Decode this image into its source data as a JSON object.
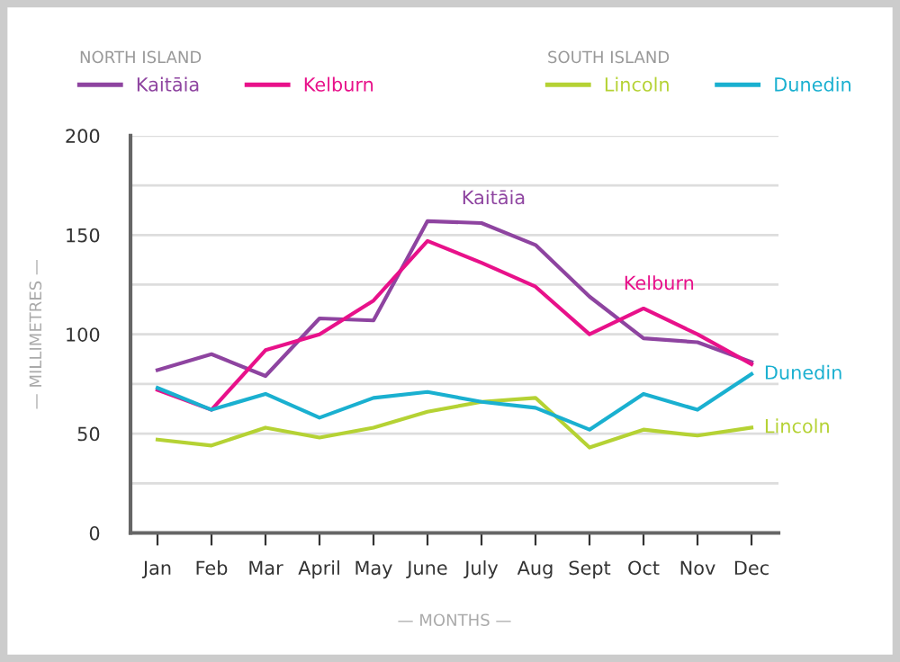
{
  "chart_data": {
    "type": "line",
    "xlabel": "— MONTHS —",
    "ylabel": "— MILLIMETRES —",
    "categories": [
      "Jan",
      "Feb",
      "Mar",
      "April",
      "May",
      "June",
      "July",
      "Aug",
      "Sept",
      "Oct",
      "Nov",
      "Dec"
    ],
    "series": [
      {
        "name": "Kaitāia",
        "color": "#8e44a0",
        "values": [
          82,
          90,
          79,
          108,
          107,
          157,
          156,
          145,
          119,
          98,
          96,
          86
        ]
      },
      {
        "name": "Kelburn",
        "color": "#e8118a",
        "values": [
          72,
          62,
          92,
          100,
          117,
          147,
          136,
          124,
          100,
          113,
          100,
          85
        ]
      },
      {
        "name": "Lincoln",
        "color": "#b5d234",
        "values": [
          47,
          44,
          53,
          48,
          53,
          61,
          66,
          68,
          43,
          52,
          49,
          53
        ]
      },
      {
        "name": "Dunedin",
        "color": "#1ab0d0",
        "values": [
          73,
          62,
          70,
          58,
          68,
          71,
          66,
          63,
          52,
          70,
          62,
          80
        ]
      }
    ],
    "annotations": [
      "NORTH ISLAND",
      "SOUTH ISLAND",
      {
        "text": "Kaitāia",
        "x": "July",
        "y": 156
      },
      {
        "text": "Kelburn",
        "x": "Oct",
        "y": 113
      },
      {
        "text": "Dunedin",
        "x": "Dec",
        "y": 80
      },
      {
        "text": "Lincoln",
        "x": "Dec",
        "y": 53
      }
    ],
    "ylim": [
      0,
      200
    ],
    "yticks": [
      0,
      {
        "value": 25,
        "label": null
      },
      50,
      {
        "value": 75,
        "label": null
      },
      100,
      {
        "value": 125,
        "label": null
      },
      150,
      {
        "value": 175,
        "label": null
      },
      200
    ],
    "grid": "y",
    "legend": "top",
    "marker": "none",
    "line_style": "solid"
  }
}
